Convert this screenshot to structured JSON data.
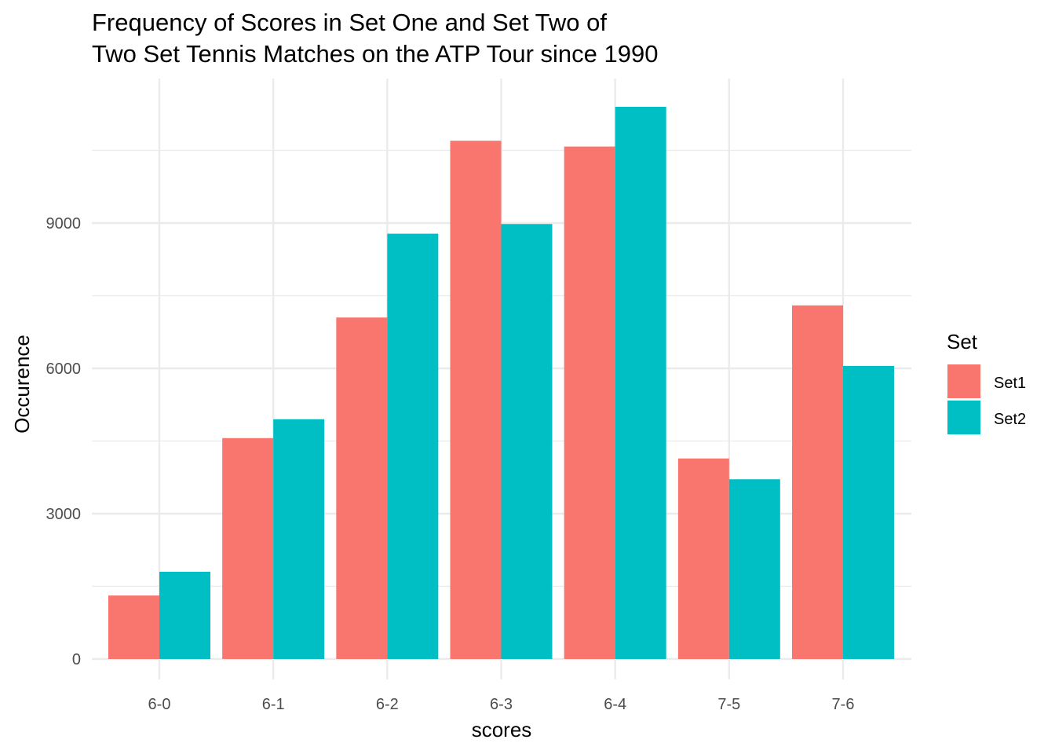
{
  "chart_data": {
    "type": "bar",
    "title_lines": [
      "Frequency of Scores in Set One and Set Two of",
      "Two Set Tennis Matches on the ATP Tour since 1990"
    ],
    "xlabel": "scores",
    "ylabel": "Occurence",
    "categories": [
      "6-0",
      "6-1",
      "6-2",
      "6-3",
      "6-4",
      "7-5",
      "7-6"
    ],
    "series": [
      {
        "name": "Set1",
        "color": "#F8766D",
        "values": [
          1310,
          4560,
          7050,
          10700,
          10580,
          4140,
          7300
        ]
      },
      {
        "name": "Set2",
        "color": "#00BFC4",
        "values": [
          1800,
          4950,
          8780,
          8980,
          11400,
          3710,
          6050
        ]
      }
    ],
    "yticks": [
      0,
      3000,
      6000,
      9000
    ],
    "ytick_labels": [
      "0",
      "3000",
      "6000",
      "9000"
    ],
    "ylim": [
      -500,
      12000
    ],
    "grid": true,
    "legend": {
      "title": "Set",
      "position": "right"
    }
  }
}
